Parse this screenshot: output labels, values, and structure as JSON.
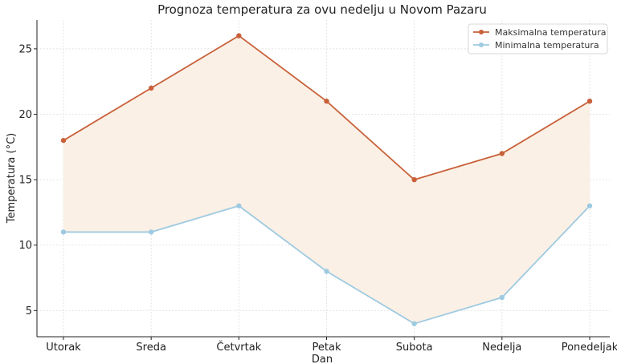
{
  "chart_data": {
    "type": "line",
    "title": "Prognoza temperatura za ovu nedelju u Novom Pazaru",
    "xlabel": "Dan",
    "ylabel": "Temperatura (°C)",
    "categories": [
      "Utorak",
      "Sreda",
      "Četvrtak",
      "Petak",
      "Subota",
      "Nedelja",
      "Ponedeljak"
    ],
    "series": [
      {
        "name": "Maksimalna temperatura",
        "values": [
          18,
          22,
          26,
          21,
          15,
          17,
          21
        ],
        "color": "#c8613a"
      },
      {
        "name": "Minimalna temperatura",
        "values": [
          11,
          11,
          13,
          8,
          4,
          6,
          13
        ],
        "color": "#9ecae1"
      }
    ],
    "fill_between_color": "#fbeee2",
    "ylim": [
      3,
      27.2
    ],
    "yticks": [
      5,
      10,
      15,
      20,
      25
    ],
    "grid": true,
    "legend_position": "top-right"
  }
}
